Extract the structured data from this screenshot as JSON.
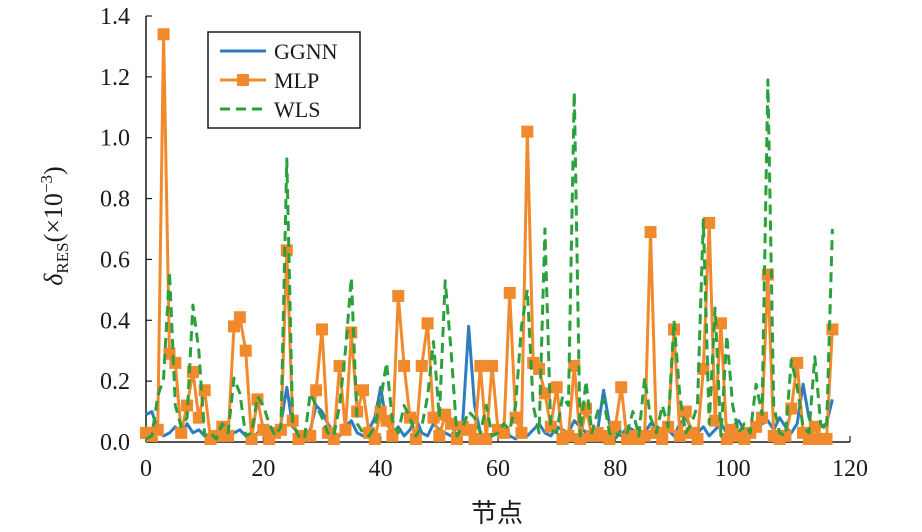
{
  "chart_data": {
    "type": "line",
    "xlabel": "节点",
    "ylabel": {
      "main": "δ",
      "sub": "RES",
      "rest": "(×10",
      "sup": "−3",
      "close": ")"
    },
    "xlim": [
      0,
      120
    ],
    "ylim": [
      0,
      1.4
    ],
    "xticks": [
      0,
      20,
      40,
      60,
      80,
      100,
      120
    ],
    "yticks": [
      0.0,
      0.2,
      0.4,
      0.6,
      0.8,
      1.0,
      1.2,
      1.4
    ],
    "xtick_labels": [
      "0",
      "20",
      "40",
      "60",
      "80",
      "100",
      "120"
    ],
    "ytick_labels": [
      "0.0",
      "0.2",
      "0.4",
      "0.6",
      "0.8",
      "1.0",
      "1.2",
      "1.4"
    ],
    "grid": false,
    "legend_position": "top-left",
    "series": [
      {
        "name": "GGNN",
        "color": "#2f7bc0",
        "style": "solid",
        "marker": "none",
        "x": [
          0,
          1,
          2,
          3,
          4,
          5,
          6,
          7,
          8,
          9,
          10,
          11,
          12,
          13,
          14,
          15,
          16,
          17,
          18,
          19,
          20,
          21,
          22,
          23,
          24,
          25,
          26,
          27,
          28,
          29,
          30,
          31,
          32,
          33,
          34,
          35,
          36,
          37,
          38,
          39,
          40,
          41,
          42,
          43,
          44,
          45,
          46,
          47,
          48,
          49,
          50,
          51,
          52,
          53,
          54,
          55,
          56,
          57,
          58,
          59,
          60,
          61,
          62,
          63,
          64,
          65,
          66,
          67,
          68,
          69,
          70,
          71,
          72,
          73,
          74,
          75,
          76,
          77,
          78,
          79,
          80,
          81,
          82,
          83,
          84,
          85,
          86,
          87,
          88,
          89,
          90,
          91,
          92,
          93,
          94,
          95,
          96,
          97,
          98,
          99,
          100,
          101,
          102,
          103,
          104,
          105,
          106,
          107,
          108,
          109,
          110,
          111,
          112,
          113,
          114,
          115,
          116,
          117
        ],
        "values": [
          0.09,
          0.1,
          0.04,
          0.02,
          0.03,
          0.05,
          0.02,
          0.06,
          0.03,
          0.04,
          0.02,
          0.01,
          0.03,
          0.05,
          0.02,
          0.03,
          0.04,
          0.02,
          0.01,
          0.03,
          0.05,
          0.04,
          0.02,
          0.06,
          0.18,
          0.05,
          0.03,
          0.02,
          0.04,
          0.12,
          0.1,
          0.06,
          0.03,
          0.02,
          0.05,
          0.07,
          0.03,
          0.02,
          0.04,
          0.08,
          0.18,
          0.06,
          0.03,
          0.05,
          0.02,
          0.04,
          0.08,
          0.03,
          0.02,
          0.06,
          0.04,
          0.03,
          0.02,
          0.05,
          0.07,
          0.38,
          0.12,
          0.03,
          0.01,
          0.02,
          0.04,
          0.06,
          0.02,
          0.01,
          0.03,
          0.02,
          0.04,
          0.06,
          0.03,
          0.02,
          0.05,
          0.04,
          0.03,
          0.07,
          0.05,
          0.03,
          0.02,
          0.04,
          0.17,
          0.06,
          0.03,
          0.02,
          0.05,
          0.04,
          0.02,
          0.03,
          0.06,
          0.05,
          0.03,
          0.04,
          0.02,
          0.06,
          0.08,
          0.04,
          0.03,
          0.05,
          0.02,
          0.04,
          0.06,
          0.03,
          0.05,
          0.07,
          0.04,
          0.03,
          0.05,
          0.06,
          0.07,
          0.04,
          0.08,
          0.05,
          0.03,
          0.06,
          0.19,
          0.08,
          0.04,
          0.05,
          0.06,
          0.14
        ]
      },
      {
        "name": "MLP",
        "color": "#f08a2c",
        "style": "solid",
        "marker": "square",
        "x": [
          0,
          1,
          2,
          3,
          4,
          5,
          6,
          7,
          8,
          9,
          10,
          11,
          12,
          13,
          14,
          15,
          16,
          17,
          18,
          19,
          20,
          21,
          22,
          23,
          24,
          25,
          26,
          27,
          28,
          29,
          30,
          31,
          32,
          33,
          34,
          35,
          36,
          37,
          38,
          39,
          40,
          41,
          42,
          43,
          44,
          45,
          46,
          47,
          48,
          49,
          50,
          51,
          52,
          53,
          54,
          55,
          56,
          57,
          58,
          59,
          60,
          61,
          62,
          63,
          64,
          65,
          66,
          67,
          68,
          69,
          70,
          71,
          72,
          73,
          74,
          75,
          76,
          77,
          78,
          79,
          80,
          81,
          82,
          83,
          84,
          85,
          86,
          87,
          88,
          89,
          90,
          91,
          92,
          93,
          94,
          95,
          96,
          97,
          98,
          99,
          100,
          101,
          102,
          103,
          104,
          105,
          106,
          107,
          108,
          109,
          110,
          111,
          112,
          113,
          114,
          115,
          116,
          117
        ],
        "values": [
          0.03,
          0.02,
          0.04,
          1.34,
          0.29,
          0.26,
          0.03,
          0.12,
          0.23,
          0.08,
          0.17,
          0.01,
          0.02,
          0.05,
          0.02,
          0.38,
          0.41,
          0.3,
          0.01,
          0.14,
          0.04,
          0.01,
          0.03,
          0.04,
          0.63,
          0.07,
          0.01,
          0.02,
          0.02,
          0.17,
          0.37,
          0.03,
          0.01,
          0.25,
          0.04,
          0.36,
          0.1,
          0.17,
          0.03,
          0.01,
          0.1,
          0.07,
          0.02,
          0.48,
          0.25,
          0.08,
          0.01,
          0.25,
          0.39,
          0.08,
          0.02,
          0.09,
          0.06,
          0.01,
          0.05,
          0.04,
          0.01,
          0.25,
          0.01,
          0.25,
          0.04,
          0.03,
          0.49,
          0.08,
          0.03,
          1.02,
          0.26,
          0.24,
          0.16,
          0.05,
          0.18,
          0.01,
          0.02,
          0.25,
          0.01,
          0.11,
          0.02,
          0.03,
          0.02,
          0.01,
          0.05,
          0.18,
          0.01,
          0.02,
          0.01,
          0.02,
          0.69,
          0.03,
          0.01,
          0.05,
          0.37,
          0.02,
          0.1,
          0.03,
          0.01,
          0.24,
          0.72,
          0.07,
          0.39,
          0.01,
          0.04,
          0.02,
          0.01,
          0.03,
          0.05,
          0.08,
          0.55,
          0.02,
          0.01,
          0.02,
          0.11,
          0.26,
          0.03,
          0.01,
          0.05,
          0.01,
          0.01,
          0.37
        ]
      },
      {
        "name": "WLS",
        "color": "#2ca03c",
        "style": "dashed",
        "marker": "none",
        "x": [
          0,
          1,
          2,
          3,
          4,
          5,
          6,
          7,
          8,
          9,
          10,
          11,
          12,
          13,
          14,
          15,
          16,
          17,
          18,
          19,
          20,
          21,
          22,
          23,
          24,
          25,
          26,
          27,
          28,
          29,
          30,
          31,
          32,
          33,
          34,
          35,
          36,
          37,
          38,
          39,
          40,
          41,
          42,
          43,
          44,
          45,
          46,
          47,
          48,
          49,
          50,
          51,
          52,
          53,
          54,
          55,
          56,
          57,
          58,
          59,
          60,
          61,
          62,
          63,
          64,
          65,
          66,
          67,
          68,
          69,
          70,
          71,
          72,
          73,
          74,
          75,
          76,
          77,
          78,
          79,
          80,
          81,
          82,
          83,
          84,
          85,
          86,
          87,
          88,
          89,
          90,
          91,
          92,
          93,
          94,
          95,
          96,
          97,
          98,
          99,
          100,
          101,
          102,
          103,
          104,
          105,
          106,
          107,
          108,
          109,
          110,
          111,
          112,
          113,
          114,
          115,
          116,
          117
        ],
        "values": [
          0.01,
          0.02,
          0.15,
          0.21,
          0.56,
          0.12,
          0.05,
          0.08,
          0.45,
          0.3,
          0.02,
          0.03,
          0.01,
          0.06,
          0.03,
          0.21,
          0.16,
          0.02,
          0.03,
          0.15,
          0.12,
          0.06,
          0.02,
          0.05,
          0.93,
          0.06,
          0.02,
          0.01,
          0.16,
          0.12,
          0.08,
          0.03,
          0.02,
          0.12,
          0.3,
          0.54,
          0.06,
          0.03,
          0.02,
          0.05,
          0.14,
          0.26,
          0.07,
          0.03,
          0.12,
          0.08,
          0.02,
          0.05,
          0.15,
          0.33,
          0.08,
          0.53,
          0.3,
          0.02,
          0.05,
          0.1,
          0.08,
          0.03,
          0.12,
          0.02,
          0.03,
          0.06,
          0.04,
          0.12,
          0.38,
          0.5,
          0.12,
          0.03,
          0.7,
          0.04,
          0.03,
          0.15,
          0.12,
          1.15,
          0.02,
          0.2,
          0.03,
          0.1,
          0.14,
          0.03,
          0.01,
          0.04,
          0.03,
          0.1,
          0.02,
          0.21,
          0.08,
          0.03,
          0.12,
          0.05,
          0.4,
          0.15,
          0.03,
          0.06,
          0.12,
          0.73,
          0.06,
          0.44,
          0.02,
          0.35,
          0.12,
          0.03,
          0.06,
          0.03,
          0.19,
          0.09,
          1.19,
          0.12,
          0.03,
          0.02,
          0.27,
          0.18,
          0.05,
          0.03,
          0.28,
          0.06,
          0.04,
          0.7
        ]
      }
    ]
  }
}
